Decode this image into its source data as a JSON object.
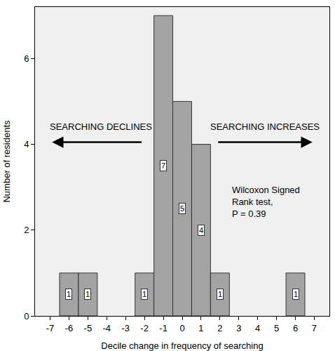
{
  "chart_data": {
    "type": "bar",
    "x": [
      -6,
      -5,
      -2,
      -1,
      0,
      1,
      2,
      6
    ],
    "values": [
      1,
      1,
      1,
      7,
      5,
      4,
      1,
      1
    ],
    "color": "#a3a3a3",
    "data_labels": true,
    "xlabel": "Decile change in frequency of searching",
    "ylabel": "Number of residents",
    "xlim": [
      -7.8,
      7.8
    ],
    "xticks": [
      -7,
      -6,
      -5,
      -4,
      -3,
      -2,
      -1,
      0,
      1,
      2,
      3,
      4,
      5,
      6,
      7
    ],
    "ylim": [
      0,
      7.2
    ],
    "yticks": [
      0,
      2,
      4,
      6
    ],
    "grid": false,
    "annotations": [
      "SEARCHING DECLINES",
      "SEARCHING INCREASES",
      [
        "Wilcoxon Signed",
        "Rank test,",
        "P = 0.39"
      ]
    ]
  }
}
